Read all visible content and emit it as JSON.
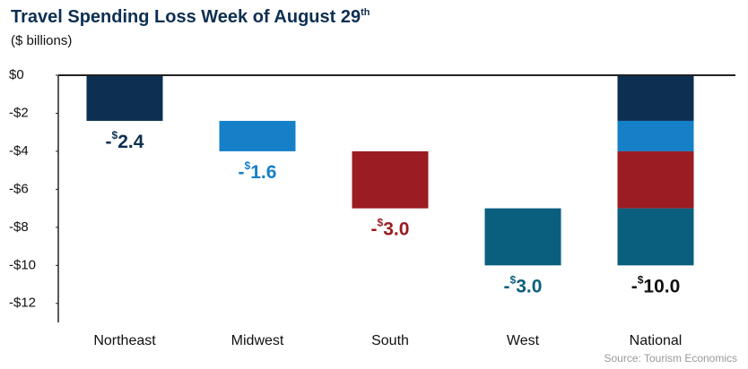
{
  "chart_data": {
    "type": "waterfall",
    "title": "Travel Spending Loss Week of August 29",
    "title_sup": "th",
    "subtitle": "($ billions)",
    "source": "Source: Tourism Economics",
    "categories": [
      "Northeast",
      "Midwest",
      "South",
      "West",
      "National"
    ],
    "values": [
      -2.4,
      -1.6,
      -3.0,
      -3.0,
      -10.0
    ],
    "value_labels": [
      "-$2.4",
      "-$1.6",
      "-$3.0",
      "-$3.0",
      "-$10.0"
    ],
    "is_total": [
      false,
      false,
      false,
      false,
      true
    ],
    "colors": [
      "#0d2f52",
      "#1580c8",
      "#9b1c22",
      "#0a5f7f",
      "#111111"
    ],
    "ylim": [
      -13,
      0
    ],
    "yticks": [
      {
        "value": 0,
        "label": "$0"
      },
      {
        "value": -2,
        "label": "-$2"
      },
      {
        "value": -4,
        "label": "-$4"
      },
      {
        "value": -6,
        "label": "-$6"
      },
      {
        "value": -8,
        "label": "-$8"
      },
      {
        "value": -10,
        "label": "-$10"
      },
      {
        "value": -12,
        "label": "-$12"
      }
    ]
  }
}
